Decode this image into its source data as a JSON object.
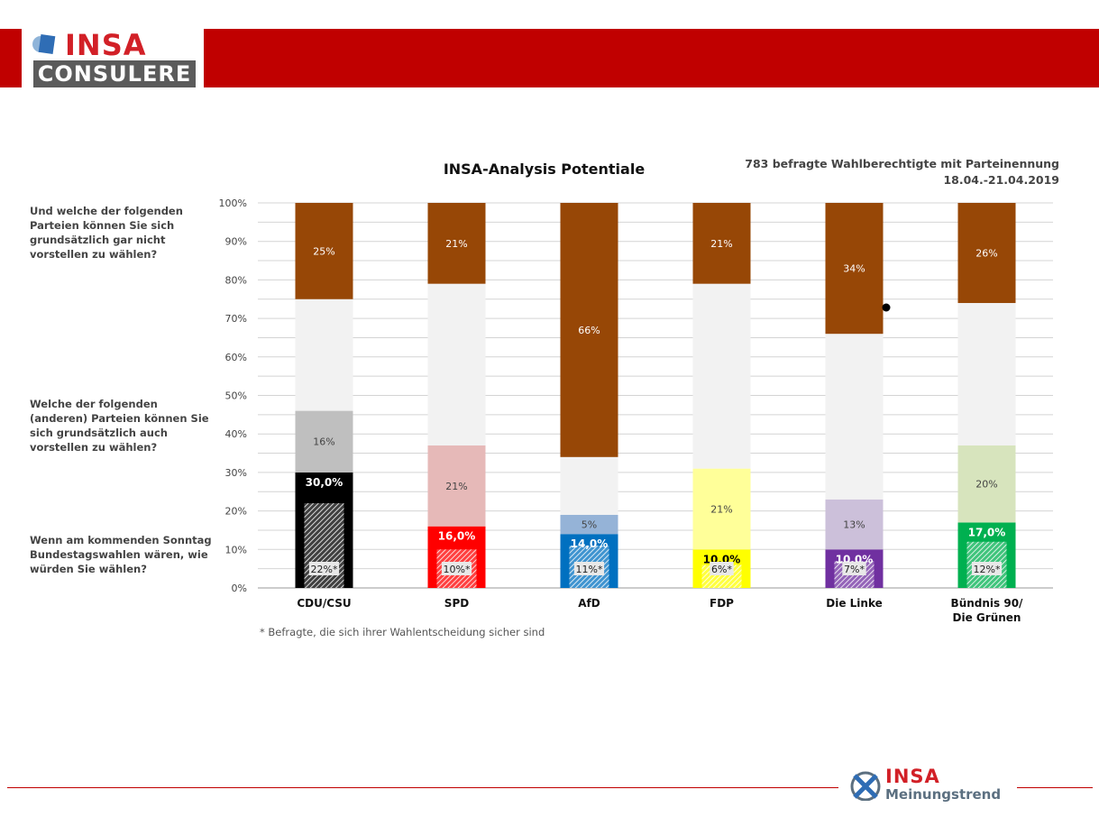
{
  "brand": {
    "top": "INSA",
    "bottom": "CONSULERE"
  },
  "footer_brand": {
    "top": "INSA",
    "bottom": "Meinungstrend"
  },
  "subtitle": {
    "line1": "783 befragte Wahlberechtigte mit Parteinennung",
    "line2": "18.04.-21.04.2019"
  },
  "questions": {
    "q1": "Und welche der folgenden Parteien können Sie sich grundsätzlich gar nicht vorstellen zu wählen?",
    "q2": "Welche der folgenden (anderen) Parteien können Sie sich grundsätzlich auch vorstellen zu wählen?",
    "q3": "Wenn am kommenden Sonntag Bundestagswahlen wären, wie würden Sie wählen?"
  },
  "footnote": "* Befragte, die sich ihrer Wahlentscheidung sicher sind",
  "colors": {
    "brand_red": "#c00000",
    "never": "#974706",
    "gap": "#f2f2f2"
  },
  "chart_data": {
    "type": "bar",
    "stacked": true,
    "title": "INSA-Analysis Potentiale",
    "ylim": [
      0,
      100
    ],
    "yticks": [
      "0%",
      "10%",
      "20%",
      "30%",
      "40%",
      "50%",
      "60%",
      "70%",
      "80%",
      "90%",
      "100%"
    ],
    "grid": true,
    "categories": [
      {
        "lines": [
          "CDU/CSU"
        ],
        "color": "#000000",
        "potential_color": "#bfbfbf"
      },
      {
        "lines": [
          "SPD"
        ],
        "color": "#ff0000",
        "potential_color": "#e6b9b8"
      },
      {
        "lines": [
          "AfD"
        ],
        "color": "#0070c0",
        "potential_color": "#95b3d7"
      },
      {
        "lines": [
          "FDP"
        ],
        "color": "#ffff00",
        "potential_color": "#ffff99"
      },
      {
        "lines": [
          "Die Linke"
        ],
        "color": "#7030a0",
        "potential_color": "#ccc0da"
      },
      {
        "lines": [
          "Bündnis 90/",
          "Die Grünen"
        ],
        "color": "#00b050",
        "potential_color": "#d7e4bd"
      }
    ],
    "vote": [
      30.0,
      16.0,
      14.0,
      10.0,
      10.0,
      17.0
    ],
    "vote_labels": [
      "30,0%",
      "16,0%",
      "14,0%",
      "10,0%",
      "10,0%",
      "17,0%"
    ],
    "sure": [
      22,
      10,
      11,
      6,
      7,
      12
    ],
    "sure_labels": [
      "22%*",
      "10%*",
      "11%*",
      "6%*",
      "7%*",
      "12%*"
    ],
    "potential": [
      16,
      21,
      5,
      21,
      13,
      20
    ],
    "potential_labels": [
      "16%",
      "21%",
      "5%",
      "21%",
      "13%",
      "20%"
    ],
    "never": [
      25,
      21,
      66,
      21,
      34,
      26
    ],
    "never_labels": [
      "25%",
      "21%",
      "66%",
      "21%",
      "34%",
      "26%"
    ]
  }
}
